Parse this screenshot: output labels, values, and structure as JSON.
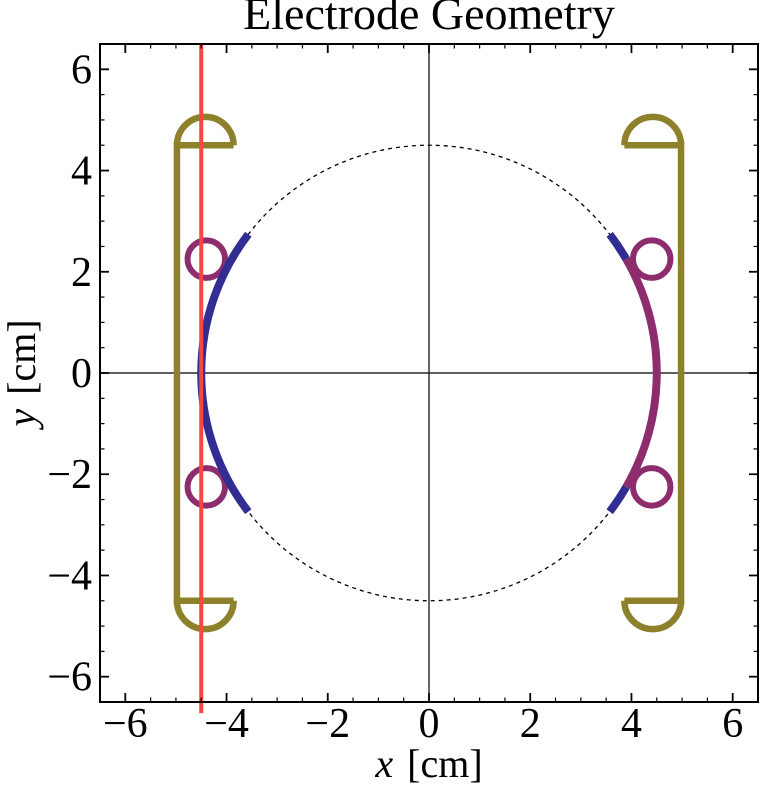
{
  "page_title": "Electrode Geometry",
  "chart_data": {
    "type": "line",
    "subtype": "2d-geometry-plot",
    "title": "Electrode Geometry",
    "xlabel": "x [cm]",
    "ylabel": "y [cm]",
    "xlabel_symbol": "x",
    "xlabel_unit": "[cm]",
    "ylabel_symbol": "y",
    "ylabel_unit": "[cm]",
    "xlim": [
      -6.5,
      6.5
    ],
    "ylim": [
      -6.5,
      6.5
    ],
    "grid": false,
    "frame": true,
    "x_ticks_major": [
      -6,
      -4,
      -2,
      0,
      2,
      4,
      6
    ],
    "x_tick_labels": [
      "−6",
      "−4",
      "−2",
      "0",
      "2",
      "4",
      "6"
    ],
    "y_ticks_major": [
      -6,
      -4,
      -2,
      0,
      2,
      4,
      6
    ],
    "y_tick_labels": [
      "−6",
      "−4",
      "−2",
      "0",
      "2",
      "4",
      "6"
    ],
    "minor_tick_step": 0.5,
    "colors": {
      "electrode_blue": "#312D92",
      "electrode_purple": "#8E2D6D",
      "holder_olive": "#8D812C",
      "reference_red": "#F8473E",
      "axes_black": "#000000",
      "background": "#FFFFFF"
    },
    "shapes": [
      {
        "kind": "line",
        "name": "horizontal-axis-y0",
        "x1": -6.5,
        "y1": 0,
        "x2": 6.5,
        "y2": 0,
        "color": "#000000",
        "width": 1.2
      },
      {
        "kind": "line",
        "name": "vertical-axis-x0",
        "x1": 0,
        "y1": -6.5,
        "x2": 0,
        "y2": 6.5,
        "color": "#000000",
        "width": 1.2
      },
      {
        "kind": "circle",
        "name": "dashed-reference-circle",
        "cx": 0,
        "cy": 0,
        "r": 4.5,
        "color": "#000000",
        "width": 1.3,
        "dash": "4 4"
      },
      {
        "kind": "circle",
        "name": "rod-ring-left-top",
        "cx": -4.4,
        "cy": 2.25,
        "r": 0.37,
        "color": "#8E2D6D",
        "width": 6
      },
      {
        "kind": "circle",
        "name": "rod-ring-left-bottom",
        "cx": -4.4,
        "cy": -2.25,
        "r": 0.37,
        "color": "#8E2D6D",
        "width": 6
      },
      {
        "kind": "circle",
        "name": "rod-ring-right-top",
        "cx": 4.4,
        "cy": 2.25,
        "r": 0.37,
        "color": "#8E2D6D",
        "width": 6
      },
      {
        "kind": "circle",
        "name": "rod-ring-right-bottom",
        "cx": 4.4,
        "cy": -2.25,
        "r": 0.37,
        "color": "#8E2D6D",
        "width": 6
      },
      {
        "kind": "arc",
        "name": "left-electrode-arc-blue",
        "cx": 0,
        "cy": 0,
        "r": 4.5,
        "a1": 142.5,
        "a2": 217.5,
        "color": "#312D92",
        "width": 8
      },
      {
        "kind": "arc",
        "name": "right-electrode-tip-blue-top",
        "cx": 0,
        "cy": 0,
        "r": 4.5,
        "a1": 30,
        "a2": 37.5,
        "color": "#312D92",
        "width": 8
      },
      {
        "kind": "arc",
        "name": "right-electrode-tip-blue-bottom",
        "cx": 0,
        "cy": 0,
        "r": 4.5,
        "a1": -37.5,
        "a2": -30,
        "color": "#312D92",
        "width": 8
      },
      {
        "kind": "arc",
        "name": "right-electrode-arc-purple",
        "cx": 0,
        "cy": 0,
        "r": 4.5,
        "a1": -30,
        "a2": 30,
        "color": "#8E2D6D",
        "width": 8
      },
      {
        "kind": "path",
        "name": "left-holder-bracket",
        "points": [
          [
            -3.86,
            4.5
          ],
          [
            -4.98,
            4.5
          ],
          [
            -4.98,
            -4.5
          ],
          [
            -3.86,
            -4.5
          ]
        ],
        "color": "#8D812C",
        "width": 6.5
      },
      {
        "kind": "arc",
        "name": "left-holder-cap-top",
        "cx": -4.42,
        "cy": 4.5,
        "r": 0.56,
        "a1": 0,
        "a2": 180,
        "color": "#8D812C",
        "width": 6.5
      },
      {
        "kind": "arc",
        "name": "left-holder-cap-bottom",
        "cx": -4.42,
        "cy": -4.5,
        "r": 0.56,
        "a1": 180,
        "a2": 360,
        "color": "#8D812C",
        "width": 6.5
      },
      {
        "kind": "path",
        "name": "right-holder-bracket",
        "points": [
          [
            3.86,
            4.5
          ],
          [
            4.98,
            4.5
          ],
          [
            4.98,
            -4.5
          ],
          [
            3.86,
            -4.5
          ]
        ],
        "color": "#8D812C",
        "width": 6.5
      },
      {
        "kind": "arc",
        "name": "right-holder-cap-top",
        "cx": 4.42,
        "cy": 4.5,
        "r": 0.56,
        "a1": 0,
        "a2": 180,
        "color": "#8D812C",
        "width": 6.5
      },
      {
        "kind": "arc",
        "name": "right-holder-cap-bottom",
        "cx": 4.42,
        "cy": -4.5,
        "r": 0.56,
        "a1": 180,
        "a2": 360,
        "color": "#8D812C",
        "width": 6.5
      },
      {
        "kind": "line",
        "name": "red-reference-line",
        "x1": -4.5,
        "y1": -6.72,
        "x2": -4.5,
        "y2": 6.5,
        "color": "#F8473E",
        "width": 4
      }
    ]
  }
}
